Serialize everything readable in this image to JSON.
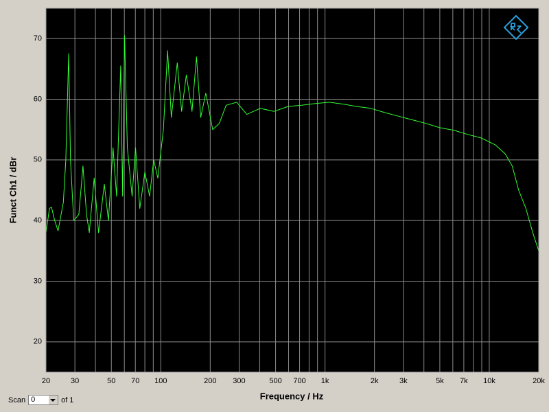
{
  "chart_data": {
    "type": "line",
    "x_label": "Frequency / Hz",
    "y_label": "Funct Ch1 / dBr",
    "x_log": true,
    "grid": true,
    "color": "#33ff33",
    "xlim": [
      20,
      20000
    ],
    "ylim": [
      15,
      75
    ],
    "xticks": [
      20,
      30,
      50,
      70,
      100,
      200,
      300,
      500,
      700,
      {
        "value": 1000,
        "label": "1k"
      },
      {
        "value": 2000,
        "label": "2k"
      },
      {
        "value": 3000,
        "label": "3k"
      },
      {
        "value": 5000,
        "label": "5k"
      },
      {
        "value": 7000,
        "label": "7k"
      },
      {
        "value": 10000,
        "label": "10k"
      },
      {
        "value": 20000,
        "label": "20k"
      }
    ],
    "x_minor_grid": [
      40,
      60,
      80,
      90,
      400,
      600,
      800,
      900,
      4000,
      6000,
      8000,
      9000
    ],
    "yticks": [
      20,
      30,
      40,
      50,
      60,
      70
    ],
    "x": [
      20,
      21,
      21.6,
      22.6,
      23.7,
      25.5,
      26.4,
      27.5,
      28.2,
      29.5,
      31.7,
      33.6,
      35.3,
      36.7,
      39.3,
      41.8,
      45.3,
      48,
      51.2,
      53.8,
      57,
      58.6,
      60.2,
      62.6,
      66.9,
      70.2,
      74.5,
      80,
      85.5,
      90.6,
      96,
      103.7,
      110,
      116,
      126,
      134,
      143,
      155,
      165,
      175,
      188,
      207,
      227,
      250,
      290,
      334,
      403,
      489,
      594,
      721,
      876,
      1063,
      1290,
      1566,
      1900,
      2306,
      2800,
      3400,
      4124,
      5005,
      6075,
      7374,
      8950,
      10862,
      12500,
      13800,
      15100,
      16700,
      18400,
      20000
    ],
    "values": [
      38,
      42,
      42.2,
      40,
      38.3,
      43,
      50,
      67.5,
      50,
      40,
      41,
      49,
      41,
      38,
      47,
      38,
      46,
      40,
      52,
      44,
      65.5,
      44,
      70.5,
      52,
      44,
      52,
      42,
      48,
      44,
      50,
      47,
      55,
      68,
      57,
      66,
      58,
      64,
      58,
      67,
      57,
      61,
      55,
      56,
      59,
      59.5,
      57.5,
      58.5,
      58,
      58.8,
      59,
      59.3,
      59.5,
      59.2,
      58.8,
      58.5,
      57.8,
      57.2,
      56.6,
      56,
      55.3,
      54.9,
      54.2,
      53.6,
      52.5,
      51,
      49,
      45,
      42,
      38,
      35
    ]
  },
  "footer": {
    "scan_label": "Scan",
    "scan_value": "0",
    "of_label": "of 1"
  }
}
